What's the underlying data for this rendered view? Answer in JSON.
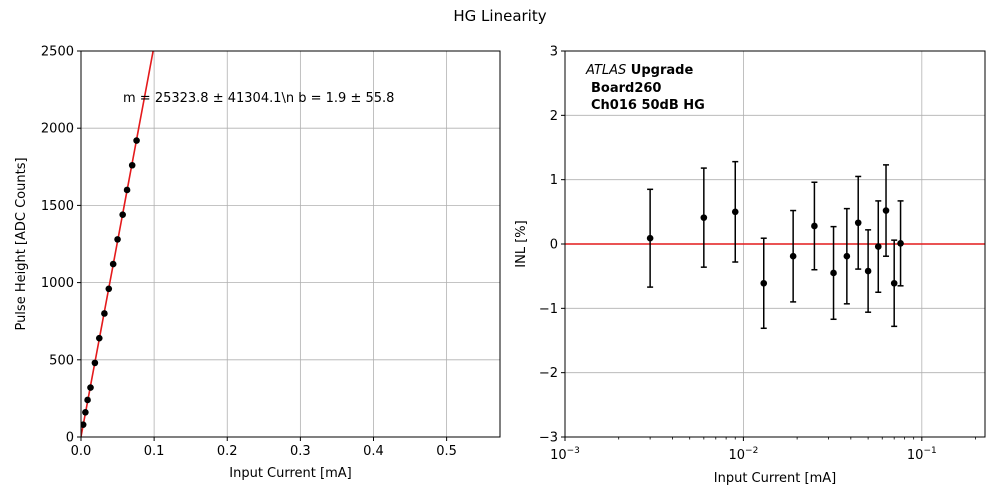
{
  "figure": {
    "title": "HG Linearity"
  },
  "chart_data": [
    {
      "type": "scatter",
      "xlabel": "Input Current [mA]",
      "ylabel": "Pulse Height [ADC Counts]",
      "xlim": [
        0,
        0.573
      ],
      "ylim": [
        0,
        2500
      ],
      "xticks": [
        0.0,
        0.1,
        0.2,
        0.3,
        0.4,
        0.5
      ],
      "xtick_labels": [
        "0.0",
        "0.1",
        "0.2",
        "0.3",
        "0.4",
        "0.5"
      ],
      "yticks": [
        0,
        500,
        1000,
        1500,
        2000,
        2500
      ],
      "ytick_labels": [
        "0",
        "500",
        "1000",
        "1500",
        "2000",
        "2500"
      ],
      "grid": true,
      "annotation": "m = 25323.8 ± 41304.1\\n b = 1.9 ± 55.8",
      "series": [
        {
          "type": "scatter",
          "color": "#000000",
          "x": [
            0.003,
            0.006,
            0.009,
            0.013,
            0.019,
            0.025,
            0.032,
            0.038,
            0.044,
            0.05,
            0.057,
            0.063,
            0.07,
            0.076
          ],
          "y": [
            80,
            160,
            240,
            320,
            480,
            640,
            800,
            960,
            1120,
            1280,
            1440,
            1600,
            1760,
            1920
          ]
        },
        {
          "type": "line",
          "color": "#e41a1c",
          "slope": 25323.8,
          "intercept": 1.9
        }
      ]
    },
    {
      "type": "scatter",
      "xlabel": "Input Current [mA]",
      "ylabel": "INL [%]",
      "xscale": "log",
      "xlim": [
        0.001,
        0.226
      ],
      "ylim": [
        -3,
        3
      ],
      "xticks": [
        0.001,
        0.01,
        0.1
      ],
      "xtick_labels": [
        {
          "base": "10",
          "exp": "−3"
        },
        {
          "base": "10",
          "exp": "−2"
        },
        {
          "base": "10",
          "exp": "−1"
        }
      ],
      "yticks": [
        -3,
        -2,
        -1,
        0,
        1,
        2,
        3
      ],
      "ytick_labels": [
        "−3",
        "−2",
        "−1",
        "0",
        "1",
        "2",
        "3"
      ],
      "grid": true,
      "annotation": {
        "experiment": "ATLAS",
        "tag": "Upgrade",
        "board": "Board260",
        "channel": "Ch016 50dB HG"
      },
      "reference_line": {
        "y": 0,
        "color": "#e41a1c"
      },
      "series": [
        {
          "type": "errorbar",
          "color": "#000000",
          "x": [
            0.003,
            0.006,
            0.009,
            0.013,
            0.019,
            0.025,
            0.032,
            0.038,
            0.044,
            0.05,
            0.057,
            0.063,
            0.07,
            0.076
          ],
          "y": [
            0.09,
            0.41,
            0.5,
            -0.61,
            -0.19,
            0.28,
            -0.45,
            -0.19,
            0.33,
            -0.42,
            -0.04,
            0.52,
            -0.61,
            0.01
          ],
          "yerr": [
            0.76,
            0.77,
            0.78,
            0.7,
            0.71,
            0.68,
            0.72,
            0.74,
            0.72,
            0.64,
            0.71,
            0.71,
            0.67,
            0.66
          ]
        }
      ]
    }
  ]
}
